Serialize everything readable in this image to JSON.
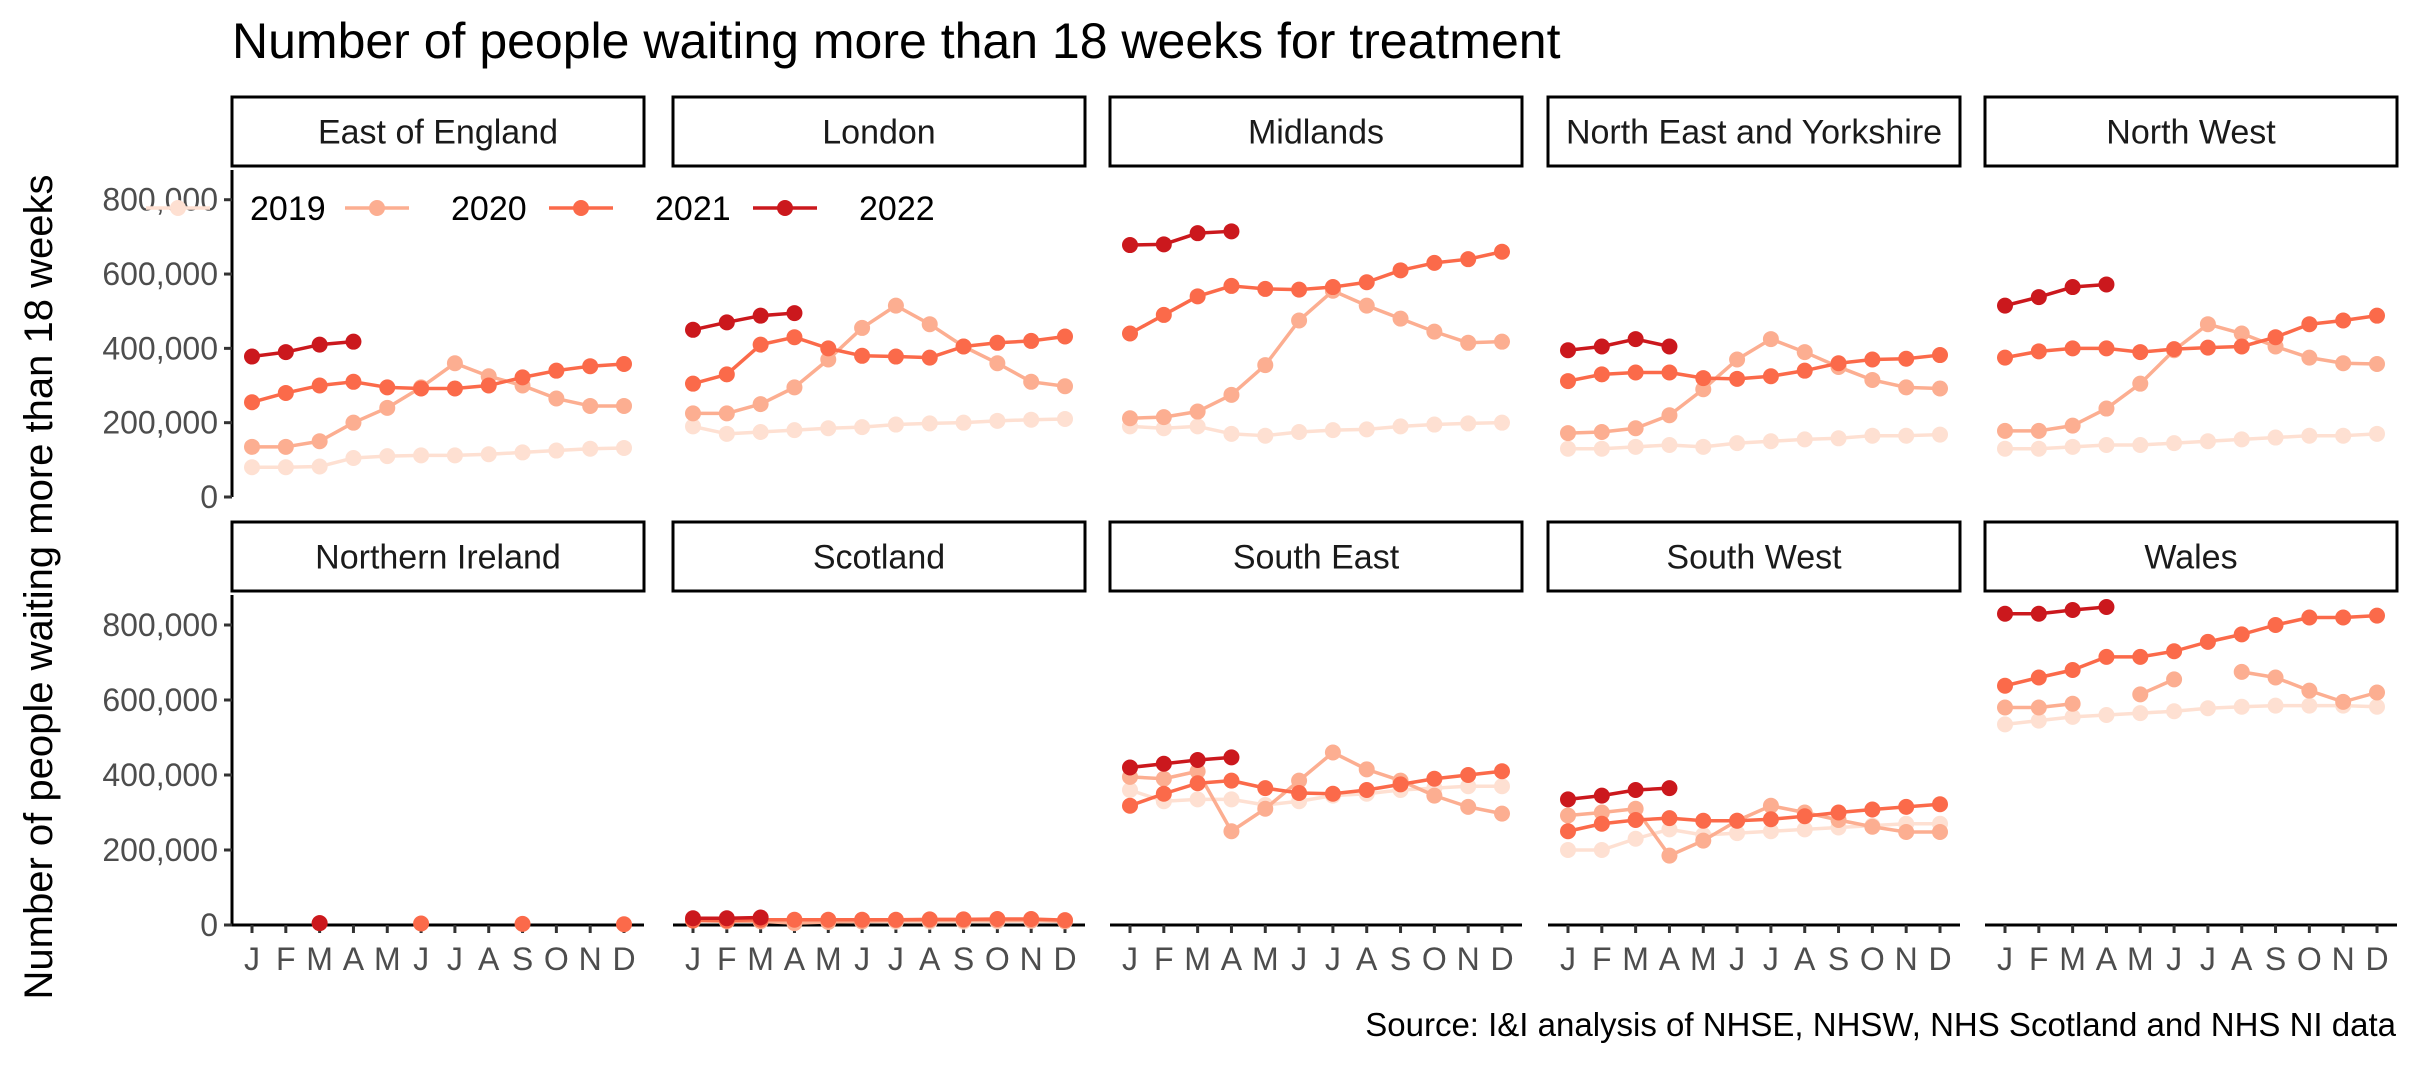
{
  "chart_data": {
    "type": "line",
    "title": "Number of people waiting more than 18 weeks for treatment",
    "ylabel": "Number of people waiting more than 18 weeks",
    "xlabel": "",
    "source": "Source: I&I analysis of NHSE, NHSW, NHS Scotland and NHS NI data",
    "ylim": [
      0,
      880000
    ],
    "yticks": [
      0,
      200000,
      400000,
      600000,
      800000
    ],
    "ytick_labels": [
      "0",
      "200,000",
      "400,000",
      "600,000",
      "800,000"
    ],
    "month_labels": [
      "J",
      "F",
      "M",
      "A",
      "M",
      "J",
      "J",
      "A",
      "S",
      "O",
      "N",
      "D"
    ],
    "legend": {
      "position": "top-left",
      "entries": [
        "2019",
        "2020",
        "2021",
        "2022"
      ]
    },
    "series_colors": {
      "2019": "#fee0d2",
      "2020": "#fcae91",
      "2021": "#fb6a4a",
      "2022": "#cb181d"
    },
    "grid": false,
    "panels": [
      {
        "name": "East of England",
        "series": [
          {
            "name": "2019",
            "values": [
              80000,
              80000,
              82000,
              105000,
              110000,
              112000,
              112000,
              115000,
              120000,
              125000,
              130000,
              132000
            ]
          },
          {
            "name": "2020",
            "values": [
              135000,
              135000,
              150000,
              200000,
              240000,
              295000,
              360000,
              325000,
              300000,
              265000,
              245000,
              245000
            ]
          },
          {
            "name": "2021",
            "values": [
              255000,
              280000,
              300000,
              310000,
              295000,
              292000,
              292000,
              300000,
              322000,
              340000,
              352000,
              358000
            ]
          },
          {
            "name": "2022",
            "values": [
              378000,
              390000,
              410000,
              418000,
              null,
              null,
              null,
              null,
              null,
              null,
              null,
              null
            ]
          }
        ]
      },
      {
        "name": "London",
        "series": [
          {
            "name": "2019",
            "values": [
              190000,
              170000,
              175000,
              180000,
              185000,
              188000,
              195000,
              198000,
              200000,
              205000,
              208000,
              210000
            ]
          },
          {
            "name": "2020",
            "values": [
              225000,
              225000,
              250000,
              295000,
              370000,
              455000,
              515000,
              465000,
              405000,
              360000,
              310000,
              298000
            ]
          },
          {
            "name": "2021",
            "values": [
              305000,
              330000,
              410000,
              430000,
              400000,
              380000,
              378000,
              375000,
              405000,
              415000,
              420000,
              432000
            ]
          },
          {
            "name": "2022",
            "values": [
              450000,
              470000,
              488000,
              495000,
              null,
              null,
              null,
              null,
              null,
              null,
              null,
              null
            ]
          }
        ]
      },
      {
        "name": "Midlands",
        "series": [
          {
            "name": "2019",
            "values": [
              190000,
              185000,
              190000,
              170000,
              165000,
              175000,
              180000,
              182000,
              190000,
              195000,
              198000,
              200000
            ]
          },
          {
            "name": "2020",
            "values": [
              212000,
              215000,
              230000,
              275000,
              355000,
              475000,
              555000,
              515000,
              480000,
              445000,
              415000,
              418000
            ]
          },
          {
            "name": "2021",
            "values": [
              440000,
              490000,
              540000,
              568000,
              560000,
              558000,
              565000,
              578000,
              610000,
              630000,
              640000,
              660000
            ]
          },
          {
            "name": "2022",
            "values": [
              678000,
              680000,
              710000,
              715000,
              null,
              null,
              null,
              null,
              null,
              null,
              null,
              null
            ]
          }
        ]
      },
      {
        "name": "North East and Yorkshire",
        "series": [
          {
            "name": "2019",
            "values": [
              130000,
              130000,
              135000,
              140000,
              135000,
              145000,
              150000,
              155000,
              158000,
              165000,
              165000,
              168000
            ]
          },
          {
            "name": "2020",
            "values": [
              172000,
              175000,
              185000,
              220000,
              290000,
              370000,
              425000,
              390000,
              350000,
              315000,
              295000,
              292000
            ]
          },
          {
            "name": "2021",
            "values": [
              312000,
              330000,
              335000,
              335000,
              320000,
              318000,
              325000,
              340000,
              360000,
              370000,
              372000,
              382000
            ]
          },
          {
            "name": "2022",
            "values": [
              395000,
              405000,
              425000,
              405000,
              null,
              null,
              null,
              null,
              null,
              null,
              null,
              null
            ]
          }
        ]
      },
      {
        "name": "North West",
        "series": [
          {
            "name": "2019",
            "values": [
              130000,
              130000,
              135000,
              140000,
              140000,
              145000,
              150000,
              155000,
              160000,
              165000,
              165000,
              170000
            ]
          },
          {
            "name": "2020",
            "values": [
              178000,
              178000,
              192000,
              238000,
              305000,
              395000,
              465000,
              440000,
              405000,
              375000,
              360000,
              358000
            ]
          },
          {
            "name": "2021",
            "values": [
              375000,
              392000,
              400000,
              400000,
              390000,
              398000,
              402000,
              405000,
              430000,
              465000,
              475000,
              488000
            ]
          },
          {
            "name": "2022",
            "values": [
              515000,
              538000,
              565000,
              572000,
              null,
              null,
              null,
              null,
              null,
              null,
              null,
              null
            ]
          }
        ]
      },
      {
        "name": "Northern Ireland",
        "series": [
          {
            "name": "2021",
            "values": [
              null,
              null,
              5000,
              null,
              null,
              4000,
              null,
              null,
              3000,
              null,
              null,
              2000
            ]
          },
          {
            "name": "2022",
            "values": [
              null,
              null,
              5000,
              null,
              null,
              null,
              null,
              null,
              null,
              null,
              null,
              null
            ]
          }
        ]
      },
      {
        "name": "Scotland",
        "series": [
          {
            "name": "2019",
            "values": [
              12000,
              10000,
              10000,
              10000,
              9000,
              9000,
              9000,
              9000,
              9000,
              10000,
              11000,
              12000
            ]
          },
          {
            "name": "2020",
            "values": [
              12000,
              10000,
              10000,
              5000,
              8000,
              10000,
              12000,
              12000,
              12000,
              12000,
              12000,
              10000
            ]
          },
          {
            "name": "2021",
            "values": [
              12000,
              12000,
              14000,
              14000,
              14000,
              14000,
              14000,
              15000,
              15000,
              16000,
              16000,
              13000
            ]
          },
          {
            "name": "2022",
            "values": [
              18000,
              18000,
              20000,
              null,
              null,
              null,
              null,
              null,
              null,
              null,
              null,
              null
            ]
          }
        ]
      },
      {
        "name": "South East",
        "series": [
          {
            "name": "2019",
            "values": [
              360000,
              330000,
              335000,
              335000,
              320000,
              330000,
              345000,
              350000,
              360000,
              365000,
              370000,
              370000
            ]
          },
          {
            "name": "2020",
            "values": [
              395000,
              390000,
              410000,
              250000,
              310000,
              385000,
              460000,
              415000,
              385000,
              345000,
              315000,
              297000
            ]
          },
          {
            "name": "2021",
            "values": [
              318000,
              350000,
              378000,
              385000,
              365000,
              352000,
              350000,
              360000,
              375000,
              390000,
              400000,
              410000
            ]
          },
          {
            "name": "2022",
            "values": [
              420000,
              430000,
              440000,
              447000,
              null,
              null,
              null,
              null,
              null,
              null,
              null,
              null
            ]
          }
        ]
      },
      {
        "name": "South West",
        "series": [
          {
            "name": "2019",
            "values": [
              200000,
              200000,
              230000,
              255000,
              240000,
              245000,
              250000,
              255000,
              260000,
              265000,
              270000,
              270000
            ]
          },
          {
            "name": "2020",
            "values": [
              292000,
              300000,
              310000,
              185000,
              225000,
              278000,
              318000,
              300000,
              280000,
              262000,
              248000,
              248000
            ]
          },
          {
            "name": "2021",
            "values": [
              250000,
              270000,
              280000,
              285000,
              278000,
              278000,
              282000,
              290000,
              300000,
              308000,
              315000,
              322000
            ]
          },
          {
            "name": "2022",
            "values": [
              335000,
              345000,
              360000,
              365000,
              null,
              null,
              null,
              null,
              null,
              null,
              null,
              null
            ]
          }
        ]
      },
      {
        "name": "Wales",
        "series": [
          {
            "name": "2019",
            "values": [
              535000,
              545000,
              555000,
              560000,
              565000,
              570000,
              578000,
              582000,
              585000,
              585000,
              585000,
              582000
            ]
          },
          {
            "name": "2020",
            "values": [
              580000,
              580000,
              590000,
              null,
              615000,
              655000,
              null,
              675000,
              660000,
              625000,
              595000,
              620000
            ]
          },
          {
            "name": "2021",
            "values": [
              638000,
              660000,
              680000,
              715000,
              715000,
              730000,
              755000,
              775000,
              800000,
              820000,
              820000,
              825000
            ]
          },
          {
            "name": "2022",
            "values": [
              830000,
              830000,
              840000,
              848000,
              null,
              null,
              null,
              null,
              null,
              null,
              null,
              null
            ]
          }
        ]
      }
    ]
  }
}
